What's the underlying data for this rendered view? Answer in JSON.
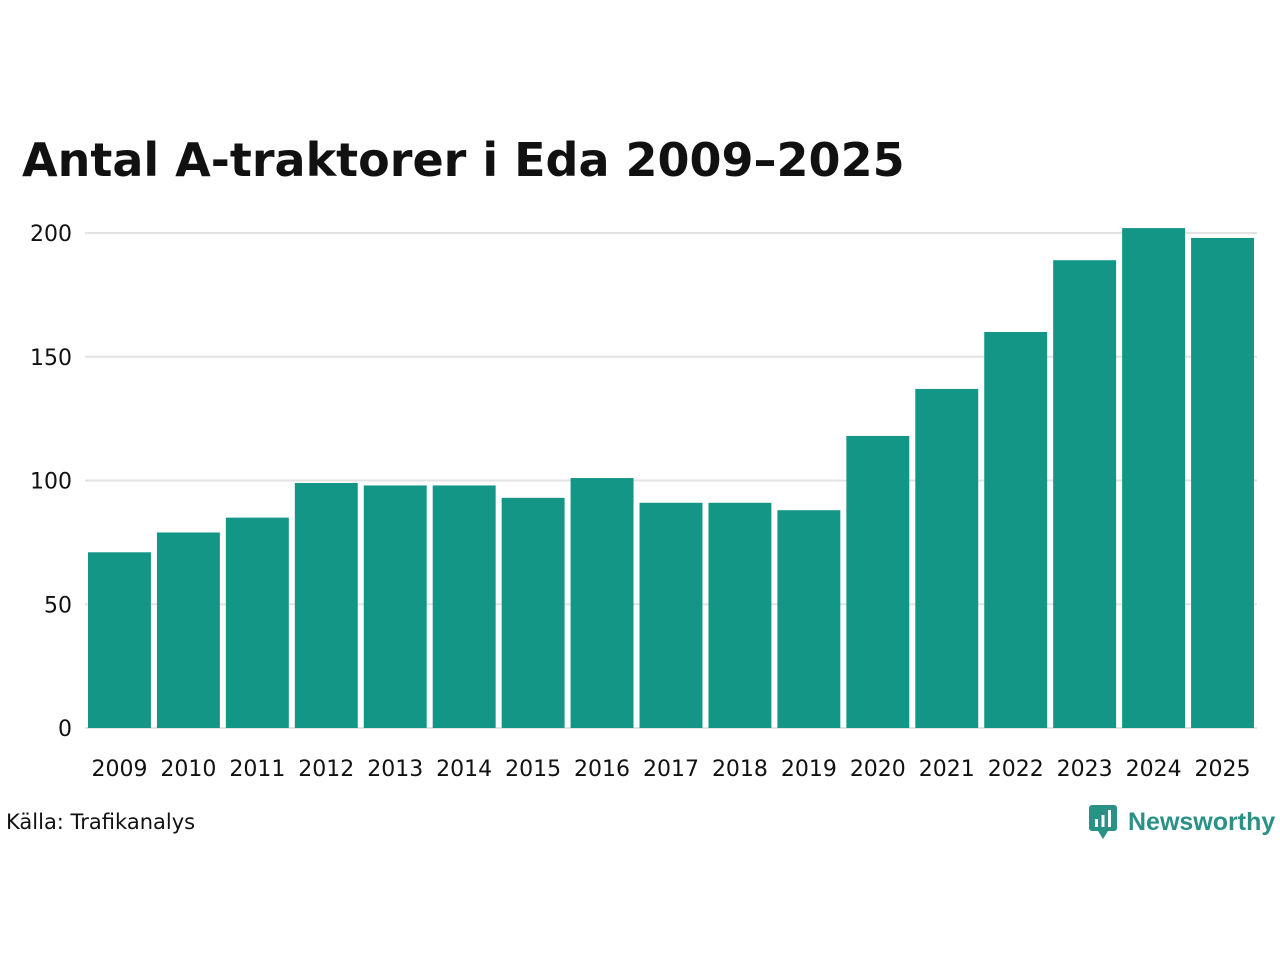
{
  "title": "Antal A-traktorer i Eda 2009–2025",
  "source": "Källa: Trafikanalys",
  "brand": {
    "name": "Newsworthy",
    "icon": "newsworthy-logo-icon",
    "color": "#2a9187"
  },
  "colors": {
    "bar": "#149687",
    "grid": "#e3e3e3",
    "text": "#111111"
  },
  "chart_data": {
    "type": "bar",
    "title": "Antal A-traktorer i Eda 2009–2025",
    "xlabel": "",
    "ylabel": "",
    "categories": [
      "2009",
      "2010",
      "2011",
      "2012",
      "2013",
      "2014",
      "2015",
      "2016",
      "2017",
      "2018",
      "2019",
      "2020",
      "2021",
      "2022",
      "2023",
      "2024",
      "2025"
    ],
    "values": [
      71,
      79,
      85,
      99,
      98,
      98,
      93,
      101,
      91,
      91,
      88,
      118,
      137,
      160,
      189,
      202,
      198
    ],
    "ylim": [
      0,
      200
    ],
    "yticks": [
      0,
      50,
      100,
      150,
      200
    ],
    "grid": true
  }
}
